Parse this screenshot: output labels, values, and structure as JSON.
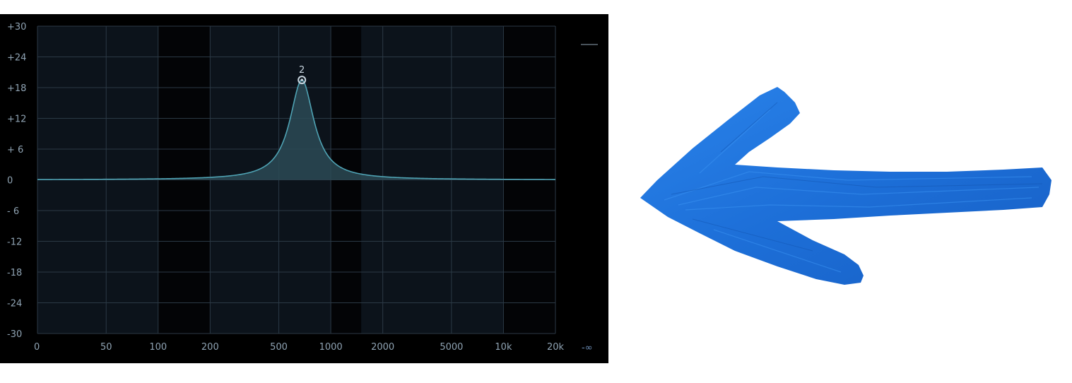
{
  "eq": {
    "y_ticks": [
      "+30",
      "+24",
      "+18",
      "+12",
      "+ 6",
      "0",
      "- 6",
      "-12",
      "-18",
      "-24",
      "-30"
    ],
    "x_ticks": [
      "0",
      "50",
      "100",
      "200",
      "500",
      "1000",
      "2000",
      "5000",
      "10k",
      "20k"
    ],
    "band": {
      "label": "2",
      "frequency_hz": 680,
      "gain_db": 19.5
    },
    "meter_infinity_label": "-∞",
    "colors": {
      "background": "#000000",
      "plot_bg": "#0c131b",
      "grid": "#2b3945",
      "curve": "#4fa3b4",
      "fill": "#2c4a55",
      "label": "#8fa3b3"
    }
  },
  "chart_data": {
    "type": "line",
    "title": "",
    "xlabel": "",
    "ylabel": "",
    "x_scale": "log",
    "ylim": [
      -30,
      30
    ],
    "x_tick_labels": [
      "0",
      "50",
      "100",
      "200",
      "500",
      "1000",
      "2000",
      "5000",
      "10k",
      "20k"
    ],
    "y_tick_labels": [
      "+30",
      "+24",
      "+18",
      "+12",
      "+ 6",
      "0",
      "- 6",
      "-12",
      "-18",
      "-24",
      "-30"
    ],
    "series": [
      {
        "x": [
          20,
          100,
          150,
          200,
          300,
          400,
          500,
          580,
          640,
          680,
          720,
          800,
          1000,
          1500,
          2000,
          3000,
          5000,
          20000
        ],
        "y": [
          0,
          0,
          0.2,
          0.4,
          1.2,
          2.6,
          5,
          9,
          14.5,
          19.5,
          14.5,
          9,
          3,
          0.6,
          0.3,
          0.1,
          0,
          0
        ]
      }
    ],
    "markers": [
      {
        "label": "2",
        "x": 680,
        "y": 19.5
      }
    ],
    "grid": true,
    "legend": "none"
  },
  "arrow": {
    "icon": "left-arrow-icon",
    "color": "#1e6fd9"
  }
}
